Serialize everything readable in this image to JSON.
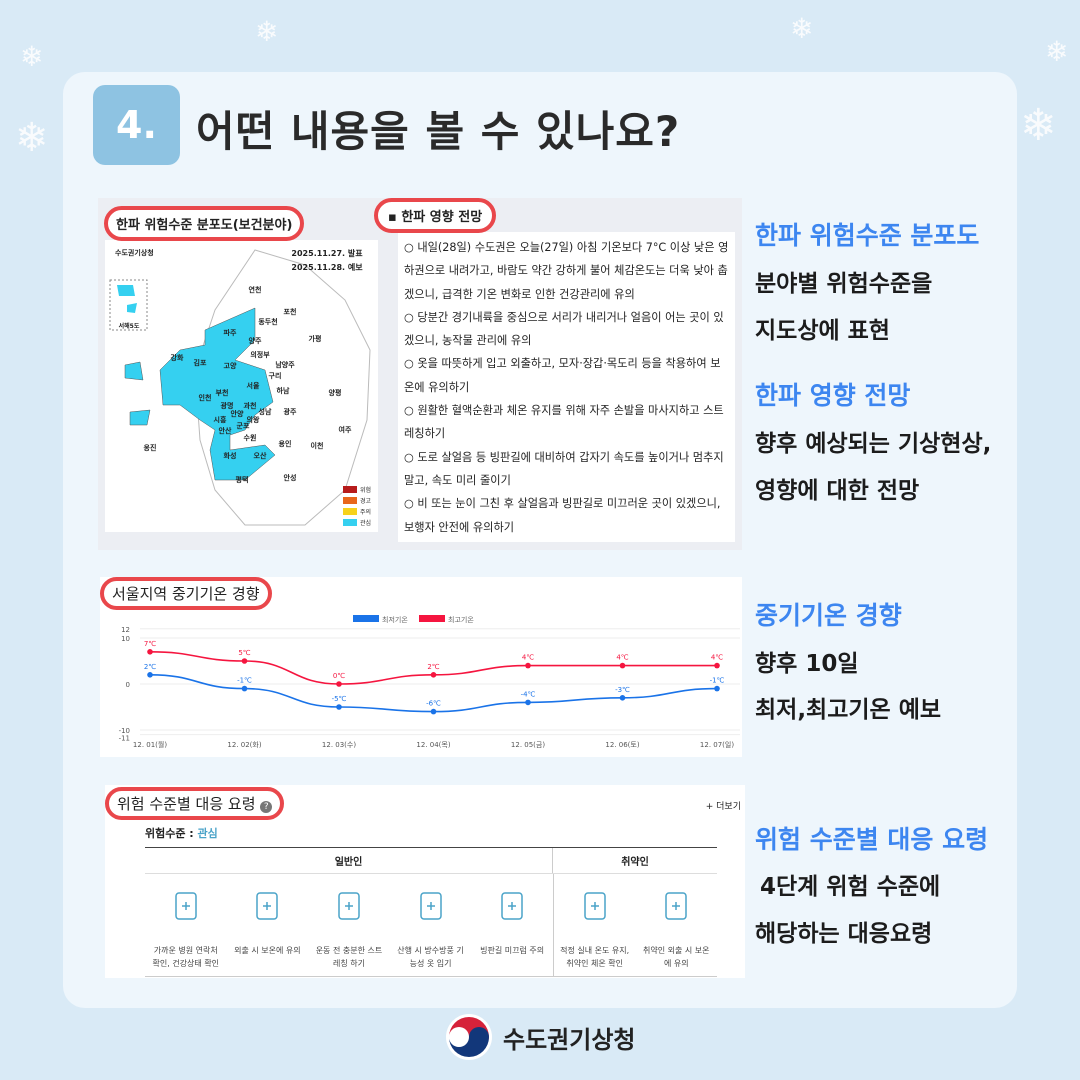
{
  "header": {
    "number": "4.",
    "title": "어떤 내용을 볼 수 있나요?"
  },
  "map_panel": {
    "title": "한파 위험수준 분포도(보건분야)",
    "agency": "수도권기상청",
    "issued": "2025.11.27. 발표",
    "forecast": "2025.11.28. 예보",
    "regions": [
      "연천",
      "포천",
      "동두천",
      "파주",
      "양주",
      "가평",
      "의정부",
      "강화",
      "김포",
      "고양",
      "남양주",
      "구리",
      "서울",
      "하남",
      "양평",
      "인천",
      "부천",
      "광명",
      "과천",
      "안양",
      "성남",
      "광주",
      "시흥",
      "군포",
      "의왕",
      "안산",
      "수원",
      "여주",
      "용인",
      "이천",
      "옹진",
      "화성",
      "오산",
      "평택",
      "안성",
      "서해5도"
    ],
    "legend": [
      {
        "label": "위험",
        "color": "#b71c1c"
      },
      {
        "label": "경고",
        "color": "#e8671c"
      },
      {
        "label": "주의",
        "color": "#f7d21c"
      },
      {
        "label": "관심",
        "color": "#35d0f0"
      }
    ]
  },
  "outlook_panel": {
    "title": "▪ 한파 영향 전망",
    "items": [
      "○ 내일(28일) 수도권은 오늘(27일) 아침 기온보다 7°C 이상 낮은 영하권으로 내려가고, 바람도 약간 강하게 불어 체감온도는 더욱 낮아 춥겠으니, 급격한 기온 변화로 인한 건강관리에 유의",
      "○ 당분간 경기내륙을 중심으로 서리가 내리거나 얼음이 어는 곳이 있겠으니, 농작물 관리에 유의",
      "○ 옷을 따뜻하게 입고 외출하고, 모자·장갑·목도리 등을 착용하여 보온에 유의하기",
      "○ 원활한 혈액순환과 체온 유지를 위해 자주 손발을 마사지하고 스트레칭하기",
      "○ 도로 살얼음 등 빙판길에 대비하여 갑자기 속도를 높이거나 멈추지 말고, 속도 미리 줄이기",
      "○ 비 또는 눈이 그친 후 살얼음과 빙판길로 미끄러운 곳이 있겠으니, 보행자 안전에 유의하기"
    ]
  },
  "chart_data": {
    "type": "line",
    "title": "서울지역 중기기온 경향",
    "categories": [
      "12. 01(월)",
      "12. 02(화)",
      "12. 03(수)",
      "12. 04(목)",
      "12. 05(금)",
      "12. 06(토)",
      "12. 07(일)"
    ],
    "series": [
      {
        "name": "최저기온",
        "color": "#1a73e8",
        "values": [
          2,
          -1,
          -5,
          -6,
          -4,
          -3,
          -1
        ]
      },
      {
        "name": "최고기온",
        "color": "#f5153f",
        "values": [
          7,
          5,
          0,
          2,
          4,
          4,
          4
        ]
      }
    ],
    "yticks": [
      12,
      10,
      0,
      -10,
      -11
    ],
    "ylim": [
      -11,
      12
    ],
    "unit": "℃",
    "legend": "top"
  },
  "response_panel": {
    "title": "위험 수준별 대응 요령",
    "more": "+ 더보기",
    "level_label": "위험수준 : ",
    "level_value": "관심",
    "groups": [
      "일반인",
      "취약인"
    ],
    "items": [
      {
        "icon": "phone-medical-icon",
        "text": "가까운 병원 연락처 확인, 건강상태 확인"
      },
      {
        "icon": "winter-clothes-icon",
        "text": "외출 시 보온에 유의"
      },
      {
        "icon": "stretching-icon",
        "text": "운동 전 충분한 스트레칭 하기"
      },
      {
        "icon": "hiking-jacket-icon",
        "text": "산행 시 방수방풍 기능성 옷 입기"
      },
      {
        "icon": "slippery-floor-icon",
        "text": "빙판길 미끄럼 주의"
      },
      {
        "icon": "house-thermometer-icon",
        "text": "적정 실내 온도 유지, 취약인 체온 확인"
      },
      {
        "icon": "winter-clothes-icon",
        "text": "취약인 외출 시 보온에 유의"
      }
    ]
  },
  "descriptions": [
    {
      "heading": "한파 위험수준 분포도",
      "lines": [
        "분야별 위험수준을",
        "지도상에 표현"
      ]
    },
    {
      "heading": "한파 영향 전망",
      "lines": [
        "향후 예상되는 기상현상,",
        "영향에 대한 전망"
      ]
    },
    {
      "heading": "중기기온 경향",
      "lines": [
        "향후 10일",
        "최저,최고기온 예보"
      ]
    },
    {
      "heading": "위험 수준별 대응 요령",
      "lines": [
        "4단계 위험 수준에",
        "해당하는 대응요령"
      ]
    }
  ],
  "footer": {
    "agency": "수도권기상청"
  },
  "colors": {
    "background": "#d9eaf6",
    "badge": "#8ec3e2",
    "accent": "#3d86f0",
    "highlight_border": "#e9474b"
  }
}
